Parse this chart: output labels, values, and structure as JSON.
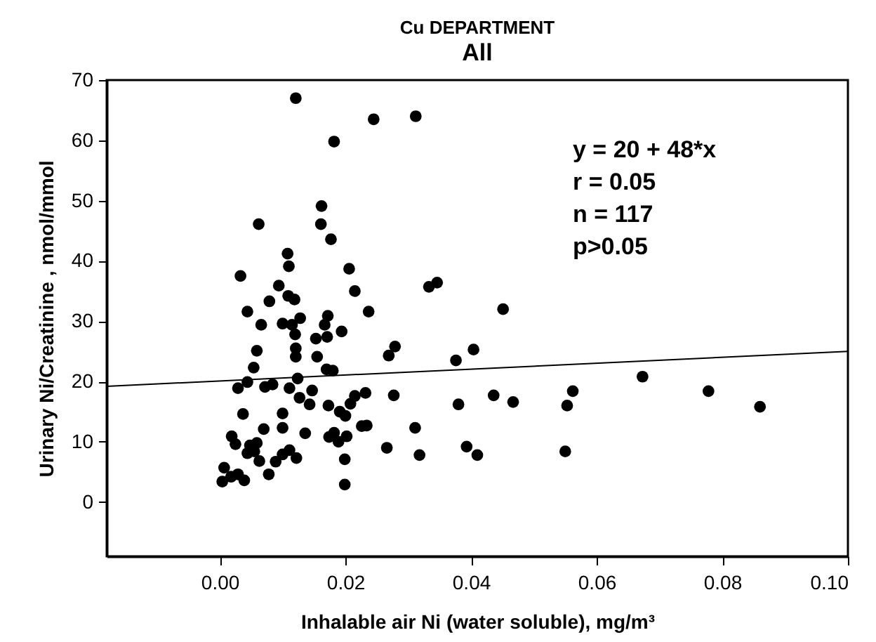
{
  "chart_data": {
    "type": "scatter",
    "title": "Cu DEPARTMENT",
    "subtitle": "All",
    "xlabel": "Inhalable air  Ni (water soluble), mg/m³",
    "ylabel": "Urinary Ni/Creatinine , nmol/mmol",
    "annotations": [
      "y = 20 + 48*x",
      "r = 0.05",
      "n = 117",
      "p>0.05"
    ],
    "xlim": [
      -0.018,
      0.1
    ],
    "ylim": [
      -9,
      70
    ],
    "xticks": [
      {
        "value": 0,
        "label": "0.00"
      },
      {
        "value": 0.02,
        "label": "0.02"
      },
      {
        "value": 0.04,
        "label": "0.04"
      },
      {
        "value": 0.06,
        "label": "0.06"
      },
      {
        "value": 0.08,
        "label": "0.08"
      },
      {
        "value": 0.1,
        "label": "0.10"
      }
    ],
    "yticks": [
      0,
      10,
      20,
      30,
      40,
      50,
      60,
      70
    ],
    "grid": false,
    "marker": "circle",
    "series": [
      {
        "color": "#000000",
        "x": [
          0.0121,
          0.0245,
          0.0312,
          0.0182,
          0.0162,
          0.0062,
          0.0161,
          0.0177,
          0.0108,
          0.011,
          0.0033,
          0.0206,
          0.0094,
          0.0109,
          0.0119,
          0.0215,
          0.0333,
          0.0346,
          0.0079,
          0.0044,
          0.0237,
          0.0451,
          0.0128,
          0.0172,
          0.0066,
          0.01,
          0.0115,
          0.0167,
          0.012,
          0.0194,
          0.0171,
          0.0153,
          0.0279,
          0.0269,
          0.0404,
          0.0376,
          0.0059,
          0.0121,
          0.0121,
          0.0155,
          0.0054,
          0.017,
          0.018,
          0.0044,
          0.0029,
          0.0072,
          0.0084,
          0.0111,
          0.0124,
          0.0147,
          0.0037,
          0.0127,
          0.0143,
          0.0173,
          0.0191,
          0.0215,
          0.0208,
          0.0232,
          0.0277,
          0.02,
          0.0436,
          0.038,
          0.01,
          0.01,
          0.0136,
          0.0019,
          0.0025,
          0.0048,
          0.0059,
          0.007,
          0.0044,
          0.0055,
          0.0063,
          0.0078,
          0.0089,
          0.01,
          0.0111,
          0.0122,
          0.0007,
          0.0004,
          0.0018,
          0.0029,
          0.0039,
          0.0174,
          0.0182,
          0.0189,
          0.0202,
          0.0226,
          0.0234,
          0.0199,
          0.0199,
          0.0266,
          0.0311,
          0.0318,
          0.0393,
          0.041,
          0.0673,
          0.0778,
          0.086,
          0.0562,
          0.0553,
          0.0467,
          0.055
        ],
        "values": [
          67.0,
          63.5,
          64.0,
          59.8,
          49.1,
          46.1,
          46.1,
          43.6,
          41.2,
          39.1,
          37.5,
          38.7,
          35.9,
          34.2,
          33.6,
          35.0,
          35.7,
          36.4,
          33.3,
          31.6,
          31.6,
          32.0,
          30.5,
          30.9,
          29.4,
          29.6,
          29.4,
          29.4,
          27.8,
          28.3,
          27.4,
          27.1,
          25.8,
          24.3,
          25.3,
          23.5,
          25.1,
          25.5,
          24.1,
          24.1,
          22.3,
          22.0,
          21.8,
          19.9,
          18.9,
          19.1,
          19.5,
          18.9,
          20.5,
          18.5,
          14.6,
          17.3,
          16.2,
          16.0,
          15.0,
          17.6,
          16.3,
          18.1,
          17.7,
          14.3,
          17.7,
          16.2,
          14.7,
          12.3,
          11.4,
          10.9,
          9.6,
          9.4,
          9.8,
          12.1,
          8.1,
          8.4,
          6.8,
          4.6,
          6.7,
          7.9,
          8.6,
          7.3,
          5.7,
          3.4,
          4.2,
          4.6,
          3.6,
          10.8,
          11.5,
          10.0,
          10.9,
          12.6,
          12.7,
          7.1,
          2.9,
          9.0,
          12.3,
          7.8,
          9.2,
          7.8,
          20.8,
          18.4,
          15.8,
          18.4,
          16.0,
          16.6,
          8.4
        ]
      },
      {
        "type": "line",
        "color": "#000000",
        "line_style": "solid",
        "marker": "none",
        "x": [
          -0.018,
          0.1
        ],
        "values": [
          19.2,
          25.0
        ]
      }
    ]
  }
}
